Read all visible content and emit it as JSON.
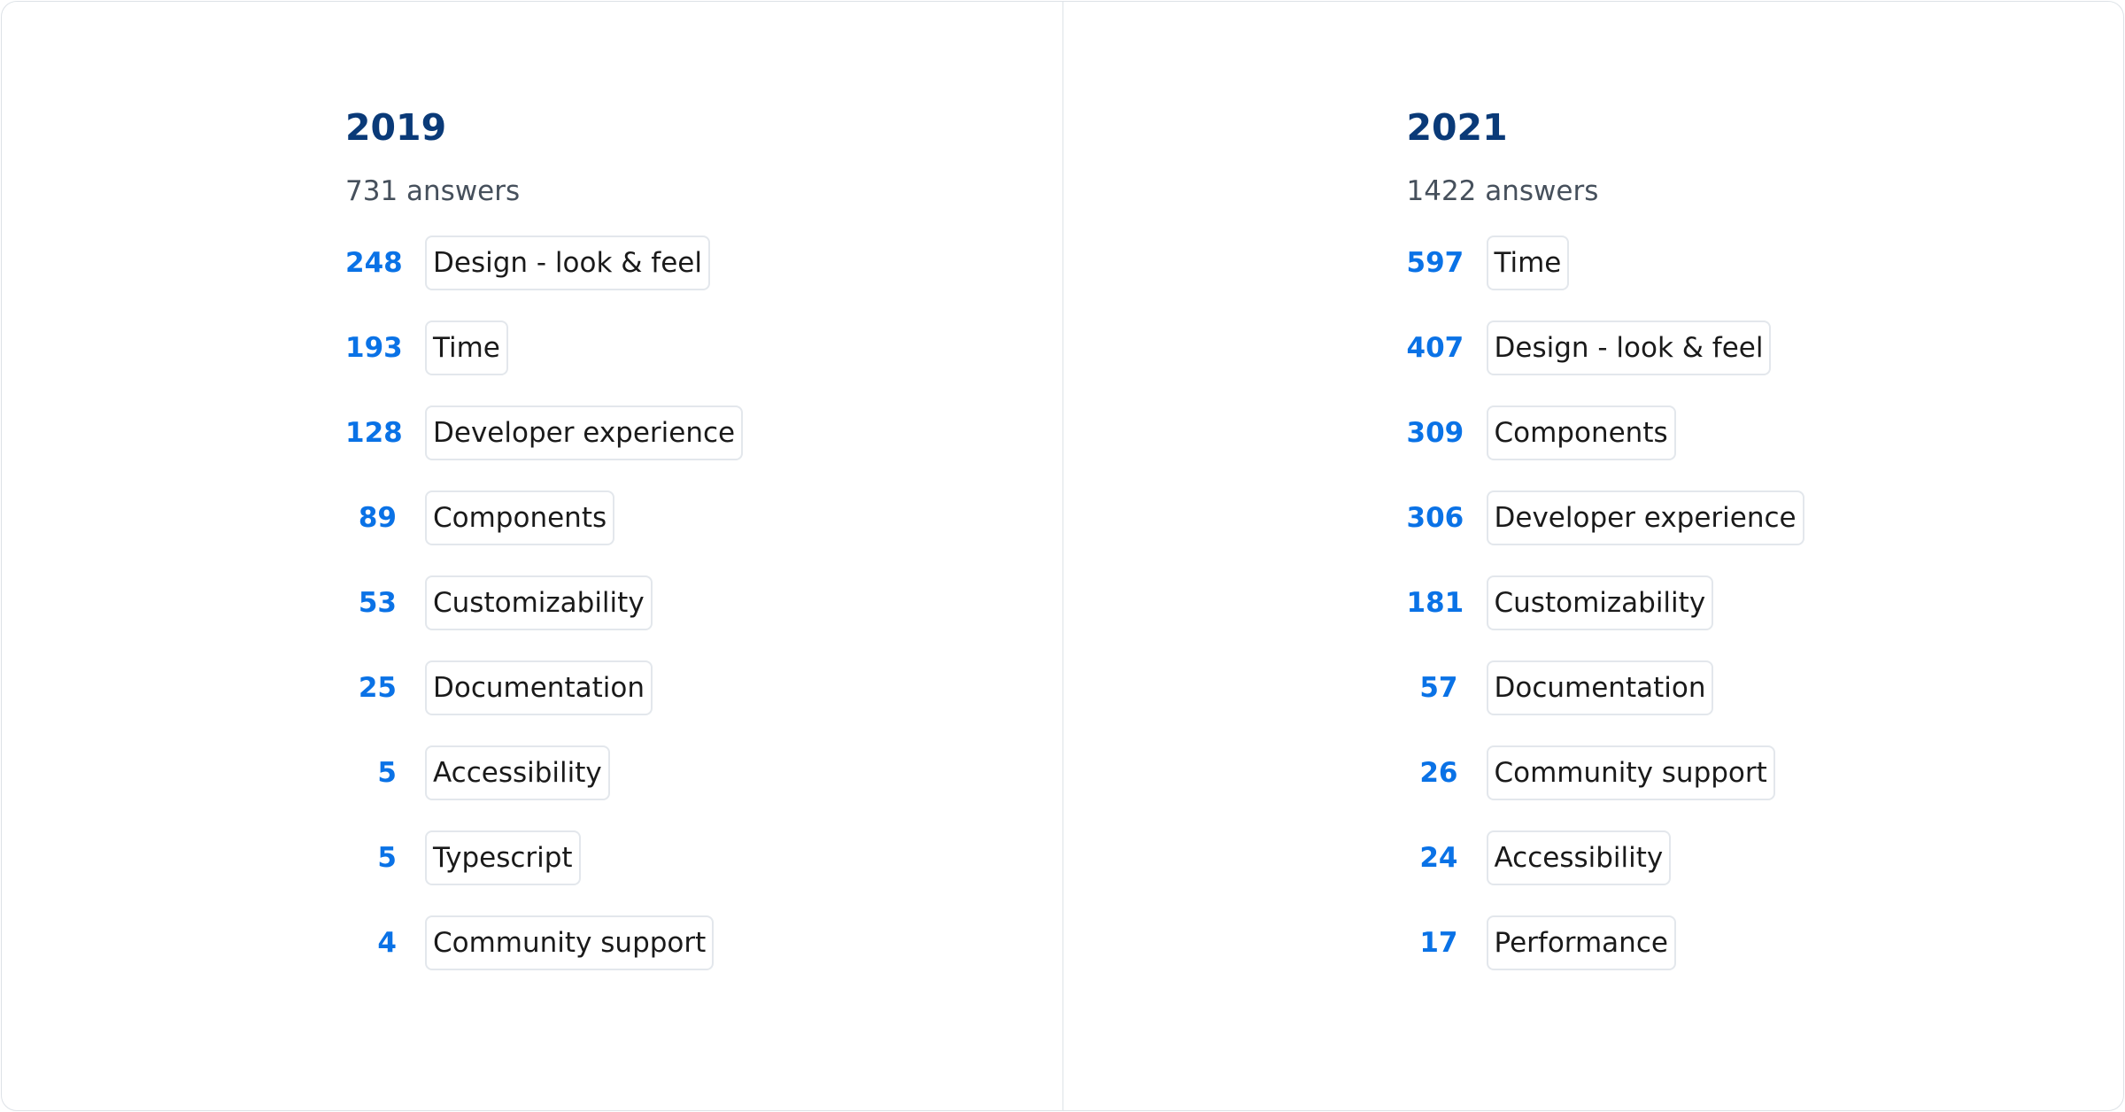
{
  "panels": [
    {
      "year": "2019",
      "answers": "731 answers",
      "items": [
        {
          "count": "248",
          "label": "Design - look & feel"
        },
        {
          "count": "193",
          "label": "Time"
        },
        {
          "count": "128",
          "label": "Developer experience"
        },
        {
          "count": "89",
          "label": "Components"
        },
        {
          "count": "53",
          "label": "Customizability"
        },
        {
          "count": "25",
          "label": "Documentation"
        },
        {
          "count": "5",
          "label": "Accessibility"
        },
        {
          "count": "5",
          "label": "Typescript"
        },
        {
          "count": "4",
          "label": "Community support"
        }
      ]
    },
    {
      "year": "2021",
      "answers": "1422 answers",
      "items": [
        {
          "count": "597",
          "label": "Time"
        },
        {
          "count": "407",
          "label": "Design - look & feel"
        },
        {
          "count": "309",
          "label": "Components"
        },
        {
          "count": "306",
          "label": "Developer experience"
        },
        {
          "count": "181",
          "label": "Customizability"
        },
        {
          "count": "57",
          "label": "Documentation"
        },
        {
          "count": "26",
          "label": "Community support"
        },
        {
          "count": "24",
          "label": "Accessibility"
        },
        {
          "count": "17",
          "label": "Performance"
        }
      ]
    }
  ],
  "colors": {
    "heading": "#0a3a78",
    "count": "#0a72e6",
    "border": "#dde2e7"
  }
}
